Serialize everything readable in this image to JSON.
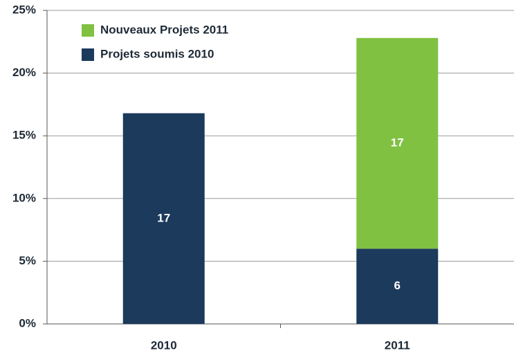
{
  "chart_data": {
    "type": "stacked-bar",
    "categories": [
      "2010",
      "2011"
    ],
    "series": [
      {
        "name": "Projets soumis 2010",
        "color": "#1b3a5c",
        "values": [
          16.8,
          6
        ],
        "value_labels": [
          "17",
          "6"
        ]
      },
      {
        "name": "Nouveaux Projets 2011",
        "color": "#80c142",
        "values": [
          null,
          16.8
        ],
        "value_labels": [
          null,
          "17"
        ]
      }
    ],
    "ylim": [
      0,
      25
    ],
    "yticks": [
      {
        "value": 0,
        "label": "0%"
      },
      {
        "value": 5,
        "label": "5%"
      },
      {
        "value": 10,
        "label": "10%"
      },
      {
        "value": 15,
        "label": "15%"
      },
      {
        "value": 20,
        "label": "20%"
      },
      {
        "value": 25,
        "label": "25%"
      }
    ],
    "grid": true,
    "legend": "top-left"
  }
}
